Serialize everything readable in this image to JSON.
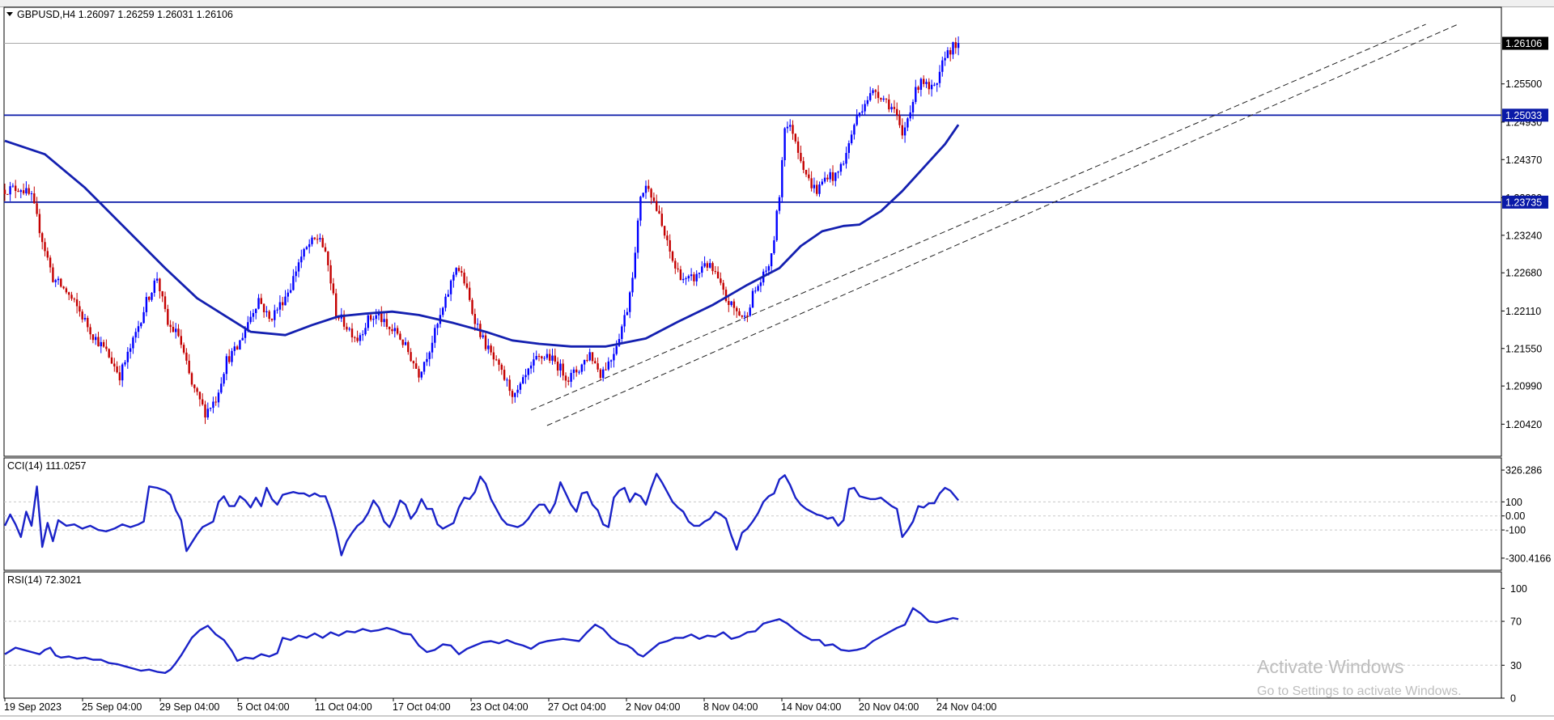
{
  "symbol_info": "GBPUSD,H4  1.26097 1.26259 1.26031 1.26106",
  "colors": {
    "up": "#0000ff",
    "down": "#c40000",
    "ma": "#1420b0",
    "indicator": "#1a22c8",
    "level": "#0a1aa8",
    "grid": "#c8c8c8",
    "border": "#000000"
  },
  "price_axis": {
    "ticks": [
      "1.25500",
      "1.24930",
      "1.24370",
      "1.23800",
      "1.23240",
      "1.22680",
      "1.22110",
      "1.21550",
      "1.20990",
      "1.20420"
    ],
    "current_price": "1.26106",
    "levels": [
      "1.25033",
      "1.23735"
    ]
  },
  "time_axis": [
    "19 Sep 2023",
    "25 Sep 04:00",
    "29 Sep 04:00",
    "5 Oct 04:00",
    "11 Oct 04:00",
    "17 Oct 04:00",
    "23 Oct 04:00",
    "27 Oct 04:00",
    "2 Nov 04:00",
    "8 Nov 04:00",
    "14 Nov 04:00",
    "20 Nov 04:00",
    "24 Nov 04:00"
  ],
  "cci": {
    "label": "CCI(14) 111.0257",
    "ticks": [
      "326.286",
      "100",
      "0.00",
      "-100",
      "-300.4166"
    ]
  },
  "rsi": {
    "label": "RSI(14) 72.3021",
    "ticks": [
      "100",
      "70",
      "30",
      "0"
    ]
  },
  "watermark": {
    "line1": "Activate Windows",
    "line2": "Go to Settings to activate Windows."
  },
  "chart_data": {
    "type": "candlestick",
    "close_path": [
      [
        0,
        1.2392
      ],
      [
        6,
        1.2395
      ],
      [
        10,
        1.238
      ],
      [
        14,
        1.2318
      ],
      [
        18,
        1.226
      ],
      [
        23,
        1.224
      ],
      [
        28,
        1.221
      ],
      [
        33,
        1.2175
      ],
      [
        38,
        1.215
      ],
      [
        43,
        1.2115
      ],
      [
        48,
        1.2165
      ],
      [
        53,
        1.2225
      ],
      [
        57,
        1.2262
      ],
      [
        61,
        1.219
      ],
      [
        65,
        1.2175
      ],
      [
        70,
        1.21
      ],
      [
        75,
        1.206
      ],
      [
        79,
        1.208
      ],
      [
        83,
        1.2138
      ],
      [
        87,
        1.2155
      ],
      [
        91,
        1.2195
      ],
      [
        95,
        1.223
      ],
      [
        99,
        1.2198
      ],
      [
        103,
        1.222
      ],
      [
        107,
        1.2248
      ],
      [
        110,
        1.2285
      ],
      [
        114,
        1.231
      ],
      [
        118,
        1.2322
      ],
      [
        121,
        1.2278
      ],
      [
        124,
        1.2208
      ],
      [
        128,
        1.2188
      ],
      [
        132,
        1.217
      ],
      [
        136,
        1.2198
      ],
      [
        140,
        1.2205
      ],
      [
        143,
        1.2185
      ],
      [
        147,
        1.2178
      ],
      [
        151,
        1.215
      ],
      [
        155,
        1.2118
      ],
      [
        159,
        1.2155
      ],
      [
        162,
        1.219
      ],
      [
        165,
        1.2225
      ],
      [
        169,
        1.228
      ],
      [
        172,
        1.2255
      ],
      [
        175,
        1.221
      ],
      [
        179,
        1.2168
      ],
      [
        183,
        1.2138
      ],
      [
        187,
        1.211
      ],
      [
        191,
        1.2082
      ],
      [
        195,
        1.2112
      ],
      [
        199,
        1.2138
      ],
      [
        203,
        1.2145
      ],
      [
        207,
        1.213
      ],
      [
        211,
        1.211
      ],
      [
        215,
        1.2125
      ],
      [
        219,
        1.2148
      ],
      [
        223,
        1.2118
      ],
      [
        227,
        1.214
      ],
      [
        230,
        1.2175
      ],
      [
        233,
        1.2215
      ],
      [
        236,
        1.2295
      ],
      [
        238,
        1.2385
      ],
      [
        241,
        1.24
      ],
      [
        245,
        1.235
      ],
      [
        248,
        1.231
      ],
      [
        251,
        1.2275
      ],
      [
        255,
        1.2255
      ],
      [
        259,
        1.2262
      ],
      [
        262,
        1.2285
      ],
      [
        266,
        1.2265
      ],
      [
        270,
        1.2228
      ],
      [
        274,
        1.221
      ],
      [
        277,
        1.22
      ],
      [
        280,
        1.2235
      ],
      [
        284,
        1.2262
      ],
      [
        287,
        1.229
      ],
      [
        290,
        1.2385
      ],
      [
        292,
        1.249
      ],
      [
        295,
        1.248
      ],
      [
        298,
        1.244
      ],
      [
        301,
        1.2405
      ],
      [
        304,
        1.239
      ],
      [
        308,
        1.2415
      ],
      [
        311,
        1.241
      ],
      [
        315,
        1.2445
      ],
      [
        318,
        1.249
      ],
      [
        322,
        1.2525
      ],
      [
        326,
        1.254
      ],
      [
        330,
        1.2525
      ],
      [
        333,
        1.251
      ],
      [
        336,
        1.247
      ],
      [
        339,
        1.2515
      ],
      [
        343,
        1.256
      ],
      [
        346,
        1.254
      ],
      [
        349,
        1.2545
      ],
      [
        352,
        1.2595
      ],
      [
        355,
        1.2605
      ],
      [
        357,
        1.2611
      ]
    ],
    "sma_path": [
      [
        0,
        1.2465
      ],
      [
        15,
        1.2445
      ],
      [
        30,
        1.2395
      ],
      [
        45,
        1.2335
      ],
      [
        60,
        1.2275
      ],
      [
        72,
        1.223
      ],
      [
        82,
        1.2205
      ],
      [
        92,
        1.218
      ],
      [
        105,
        1.2175
      ],
      [
        115,
        1.219
      ],
      [
        125,
        1.2203
      ],
      [
        135,
        1.2207
      ],
      [
        145,
        1.221
      ],
      [
        155,
        1.2205
      ],
      [
        168,
        1.2193
      ],
      [
        180,
        1.218
      ],
      [
        190,
        1.2167
      ],
      [
        200,
        1.2162
      ],
      [
        212,
        1.2158
      ],
      [
        225,
        1.2158
      ],
      [
        240,
        1.217
      ],
      [
        252,
        1.2195
      ],
      [
        265,
        1.222
      ],
      [
        278,
        1.225
      ],
      [
        290,
        1.2275
      ],
      [
        298,
        1.2308
      ],
      [
        306,
        1.233
      ],
      [
        314,
        1.2338
      ],
      [
        320,
        1.234
      ],
      [
        328,
        1.236
      ],
      [
        336,
        1.239
      ],
      [
        344,
        1.2425
      ],
      [
        352,
        1.246
      ],
      [
        357,
        1.2489
      ]
    ],
    "trendline_1": [
      [
        197,
        1.2063
      ],
      [
        532,
        1.2639
      ]
    ],
    "trendline_2": [
      [
        203,
        1.204
      ],
      [
        544,
        1.2639
      ]
    ],
    "cci_path": [
      [
        0,
        -70
      ],
      [
        2,
        10
      ],
      [
        4,
        -60
      ],
      [
        6,
        -150
      ],
      [
        8,
        30
      ],
      [
        10,
        -70
      ],
      [
        12,
        210
      ],
      [
        14,
        -220
      ],
      [
        16,
        -50
      ],
      [
        18,
        -180
      ],
      [
        20,
        -30
      ],
      [
        23,
        -70
      ],
      [
        26,
        -60
      ],
      [
        29,
        -90
      ],
      [
        32,
        -70
      ],
      [
        35,
        -100
      ],
      [
        38,
        -110
      ],
      [
        41,
        -90
      ],
      [
        44,
        -60
      ],
      [
        47,
        -80
      ],
      [
        50,
        -60
      ],
      [
        52,
        -40
      ],
      [
        54,
        210
      ],
      [
        57,
        200
      ],
      [
        60,
        180
      ],
      [
        62,
        150
      ],
      [
        64,
        40
      ],
      [
        66,
        -30
      ],
      [
        68,
        -250
      ],
      [
        70,
        -190
      ],
      [
        72,
        -130
      ],
      [
        74,
        -80
      ],
      [
        76,
        -60
      ],
      [
        78,
        -40
      ],
      [
        80,
        100
      ],
      [
        82,
        140
      ],
      [
        84,
        70
      ],
      [
        86,
        70
      ],
      [
        88,
        140
      ],
      [
        90,
        110
      ],
      [
        92,
        60
      ],
      [
        94,
        130
      ],
      [
        96,
        70
      ],
      [
        98,
        200
      ],
      [
        100,
        120
      ],
      [
        102,
        80
      ],
      [
        104,
        150
      ],
      [
        106,
        160
      ],
      [
        108,
        170
      ],
      [
        110,
        160
      ],
      [
        112,
        160
      ],
      [
        114,
        140
      ],
      [
        116,
        160
      ],
      [
        118,
        140
      ],
      [
        120,
        140
      ],
      [
        122,
        40
      ],
      [
        124,
        -100
      ],
      [
        126,
        -280
      ],
      [
        128,
        -180
      ],
      [
        130,
        -120
      ],
      [
        132,
        -70
      ],
      [
        134,
        -40
      ],
      [
        136,
        20
      ],
      [
        138,
        110
      ],
      [
        140,
        60
      ],
      [
        142,
        -40
      ],
      [
        144,
        -80
      ],
      [
        146,
        0
      ],
      [
        148,
        110
      ],
      [
        150,
        80
      ],
      [
        152,
        -20
      ],
      [
        154,
        30
      ],
      [
        156,
        120
      ],
      [
        158,
        50
      ],
      [
        160,
        50
      ],
      [
        162,
        -60
      ],
      [
        164,
        -90
      ],
      [
        166,
        -70
      ],
      [
        168,
        -50
      ],
      [
        170,
        60
      ],
      [
        172,
        130
      ],
      [
        174,
        120
      ],
      [
        176,
        170
      ],
      [
        178,
        280
      ],
      [
        180,
        230
      ],
      [
        182,
        120
      ],
      [
        184,
        50
      ],
      [
        186,
        -20
      ],
      [
        188,
        -60
      ],
      [
        190,
        -70
      ],
      [
        192,
        -80
      ],
      [
        194,
        -60
      ],
      [
        196,
        -20
      ],
      [
        198,
        40
      ],
      [
        200,
        80
      ],
      [
        202,
        80
      ],
      [
        204,
        20
      ],
      [
        206,
        90
      ],
      [
        208,
        240
      ],
      [
        210,
        160
      ],
      [
        212,
        80
      ],
      [
        214,
        30
      ],
      [
        216,
        160
      ],
      [
        218,
        170
      ],
      [
        220,
        80
      ],
      [
        222,
        40
      ],
      [
        224,
        -60
      ],
      [
        226,
        -80
      ],
      [
        228,
        130
      ],
      [
        230,
        180
      ],
      [
        232,
        200
      ],
      [
        234,
        100
      ],
      [
        236,
        160
      ],
      [
        238,
        140
      ],
      [
        240,
        80
      ],
      [
        242,
        200
      ],
      [
        244,
        300
      ],
      [
        246,
        240
      ],
      [
        248,
        170
      ],
      [
        250,
        100
      ],
      [
        252,
        60
      ],
      [
        254,
        30
      ],
      [
        256,
        -40
      ],
      [
        258,
        -70
      ],
      [
        260,
        -70
      ],
      [
        262,
        -40
      ],
      [
        264,
        -20
      ],
      [
        266,
        30
      ],
      [
        268,
        10
      ],
      [
        270,
        -20
      ],
      [
        272,
        -140
      ],
      [
        274,
        -240
      ],
      [
        276,
        -120
      ],
      [
        278,
        -90
      ],
      [
        280,
        -40
      ],
      [
        282,
        20
      ],
      [
        284,
        100
      ],
      [
        286,
        140
      ],
      [
        288,
        160
      ],
      [
        290,
        260
      ],
      [
        292,
        290
      ],
      [
        294,
        220
      ],
      [
        296,
        130
      ],
      [
        298,
        80
      ],
      [
        300,
        50
      ],
      [
        302,
        30
      ],
      [
        304,
        10
      ],
      [
        306,
        0
      ],
      [
        308,
        -20
      ],
      [
        310,
        -10
      ],
      [
        312,
        -70
      ],
      [
        314,
        -30
      ],
      [
        316,
        190
      ],
      [
        318,
        200
      ],
      [
        320,
        140
      ],
      [
        322,
        130
      ],
      [
        324,
        120
      ],
      [
        326,
        120
      ],
      [
        328,
        130
      ],
      [
        330,
        100
      ],
      [
        332,
        70
      ],
      [
        334,
        50
      ],
      [
        336,
        -150
      ],
      [
        338,
        -100
      ],
      [
        340,
        -40
      ],
      [
        342,
        70
      ],
      [
        344,
        60
      ],
      [
        346,
        90
      ],
      [
        348,
        90
      ],
      [
        350,
        160
      ],
      [
        352,
        200
      ],
      [
        354,
        180
      ],
      [
        357,
        111
      ]
    ],
    "rsi_path": [
      [
        0,
        40
      ],
      [
        4,
        46
      ],
      [
        7,
        44
      ],
      [
        10,
        42
      ],
      [
        13,
        40
      ],
      [
        15,
        44
      ],
      [
        17,
        46
      ],
      [
        19,
        39
      ],
      [
        21,
        37
      ],
      [
        24,
        38
      ],
      [
        27,
        36
      ],
      [
        30,
        37
      ],
      [
        33,
        35
      ],
      [
        36,
        35
      ],
      [
        39,
        32
      ],
      [
        42,
        31
      ],
      [
        45,
        29
      ],
      [
        48,
        27
      ],
      [
        51,
        25
      ],
      [
        54,
        26
      ],
      [
        57,
        24
      ],
      [
        60,
        23
      ],
      [
        62,
        26
      ],
      [
        64,
        32
      ],
      [
        66,
        39
      ],
      [
        68,
        47
      ],
      [
        70,
        55
      ],
      [
        73,
        62
      ],
      [
        76,
        66
      ],
      [
        79,
        58
      ],
      [
        82,
        53
      ],
      [
        85,
        43
      ],
      [
        87,
        34
      ],
      [
        90,
        37
      ],
      [
        93,
        36
      ],
      [
        96,
        40
      ],
      [
        99,
        38
      ],
      [
        102,
        41
      ],
      [
        104,
        55
      ],
      [
        107,
        53
      ],
      [
        110,
        57
      ],
      [
        113,
        55
      ],
      [
        116,
        59
      ],
      [
        119,
        55
      ],
      [
        122,
        60
      ],
      [
        125,
        57
      ],
      [
        128,
        61
      ],
      [
        131,
        60
      ],
      [
        134,
        63
      ],
      [
        137,
        61
      ],
      [
        140,
        62
      ],
      [
        143,
        64
      ],
      [
        146,
        62
      ],
      [
        149,
        59
      ],
      [
        152,
        58
      ],
      [
        155,
        48
      ],
      [
        158,
        42
      ],
      [
        161,
        44
      ],
      [
        164,
        49
      ],
      [
        167,
        48
      ],
      [
        170,
        40
      ],
      [
        173,
        45
      ],
      [
        176,
        48
      ],
      [
        179,
        51
      ],
      [
        182,
        52
      ],
      [
        185,
        50
      ],
      [
        188,
        53
      ],
      [
        191,
        50
      ],
      [
        194,
        48
      ],
      [
        197,
        45
      ],
      [
        200,
        50
      ],
      [
        203,
        52
      ],
      [
        206,
        53
      ],
      [
        209,
        54
      ],
      [
        212,
        53
      ],
      [
        215,
        52
      ],
      [
        218,
        60
      ],
      [
        221,
        67
      ],
      [
        224,
        63
      ],
      [
        227,
        55
      ],
      [
        230,
        50
      ],
      [
        233,
        48
      ],
      [
        235,
        45
      ],
      [
        237,
        40
      ],
      [
        239,
        38
      ],
      [
        242,
        44
      ],
      [
        245,
        50
      ],
      [
        248,
        52
      ],
      [
        251,
        55
      ],
      [
        254,
        55
      ],
      [
        257,
        58
      ],
      [
        260,
        54
      ],
      [
        263,
        57
      ],
      [
        266,
        56
      ],
      [
        269,
        60
      ],
      [
        272,
        54
      ],
      [
        275,
        56
      ],
      [
        278,
        60
      ],
      [
        281,
        61
      ],
      [
        284,
        68
      ],
      [
        287,
        70
      ],
      [
        290,
        72
      ],
      [
        293,
        68
      ],
      [
        296,
        62
      ],
      [
        299,
        57
      ],
      [
        302,
        53
      ],
      [
        305,
        53
      ],
      [
        307,
        48
      ],
      [
        310,
        49
      ],
      [
        313,
        44
      ],
      [
        316,
        43
      ],
      [
        319,
        44
      ],
      [
        322,
        46
      ],
      [
        325,
        52
      ],
      [
        328,
        56
      ],
      [
        331,
        60
      ],
      [
        334,
        64
      ],
      [
        337,
        67
      ],
      [
        340,
        82
      ],
      [
        343,
        77
      ],
      [
        346,
        70
      ],
      [
        349,
        69
      ],
      [
        352,
        71
      ],
      [
        355,
        73
      ],
      [
        357,
        72
      ]
    ]
  }
}
